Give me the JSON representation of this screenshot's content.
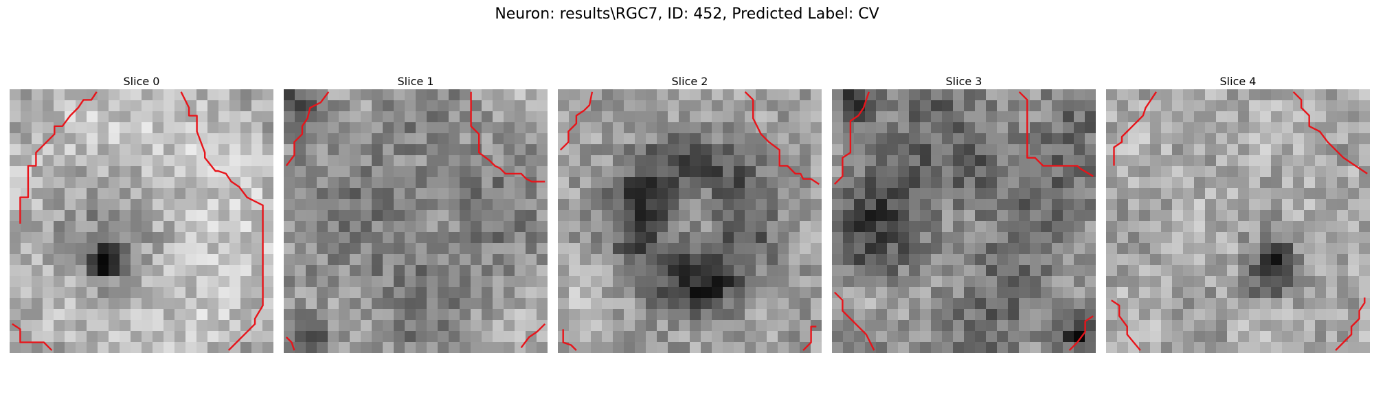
{
  "figure": {
    "title": "Neuron: results\\RGC7, ID: 452, Predicted Label: CV",
    "colors": {
      "contour": "#e8141a",
      "background": "#ffffff"
    },
    "slices": [
      {
        "label": "Slice 0",
        "style": "bright-ring-dark-spot",
        "contours": [
          [
            [
              0.04,
              0.51
            ],
            [
              0.04,
              0.41
            ],
            [
              0.07,
              0.41
            ],
            [
              0.07,
              0.29
            ],
            [
              0.1,
              0.29
            ],
            [
              0.1,
              0.24
            ],
            [
              0.14,
              0.2
            ],
            [
              0.17,
              0.17
            ],
            [
              0.17,
              0.14
            ],
            [
              0.2,
              0.14
            ],
            [
              0.23,
              0.1
            ],
            [
              0.26,
              0.07
            ],
            [
              0.28,
              0.04
            ],
            [
              0.31,
              0.04
            ],
            [
              0.33,
              0.01
            ]
          ],
          [
            [
              0.65,
              0.01
            ],
            [
              0.68,
              0.07
            ],
            [
              0.68,
              0.1
            ],
            [
              0.71,
              0.1
            ],
            [
              0.71,
              0.16
            ],
            [
              0.74,
              0.24
            ],
            [
              0.74,
              0.26
            ],
            [
              0.78,
              0.31
            ],
            [
              0.79,
              0.31
            ],
            [
              0.82,
              0.32
            ],
            [
              0.84,
              0.35
            ],
            [
              0.87,
              0.37
            ],
            [
              0.9,
              0.41
            ],
            [
              0.96,
              0.44
            ],
            [
              0.96,
              0.49
            ],
            [
              0.96,
              0.82
            ],
            [
              0.93,
              0.87
            ],
            [
              0.93,
              0.89
            ],
            [
              0.9,
              0.92
            ],
            [
              0.85,
              0.97
            ],
            [
              0.83,
              0.99
            ]
          ],
          [
            [
              0.01,
              0.89
            ],
            [
              0.04,
              0.91
            ],
            [
              0.04,
              0.96
            ],
            [
              0.13,
              0.96
            ],
            [
              0.16,
              0.99
            ]
          ]
        ]
      },
      {
        "label": "Slice 1",
        "style": "mottled",
        "contours": [
          [
            [
              0.01,
              0.29
            ],
            [
              0.04,
              0.25
            ],
            [
              0.04,
              0.2
            ],
            [
              0.07,
              0.17
            ],
            [
              0.07,
              0.14
            ],
            [
              0.09,
              0.11
            ],
            [
              0.1,
              0.07
            ],
            [
              0.14,
              0.05
            ],
            [
              0.17,
              0.01
            ]
          ],
          [
            [
              0.71,
              0.01
            ],
            [
              0.71,
              0.14
            ],
            [
              0.74,
              0.17
            ],
            [
              0.74,
              0.24
            ],
            [
              0.78,
              0.27
            ],
            [
              0.8,
              0.29
            ],
            [
              0.82,
              0.3
            ],
            [
              0.84,
              0.32
            ],
            [
              0.9,
              0.32
            ],
            [
              0.92,
              0.34
            ],
            [
              0.94,
              0.35
            ],
            [
              0.99,
              0.35
            ]
          ],
          [
            [
              0.01,
              0.94
            ],
            [
              0.03,
              0.96
            ],
            [
              0.04,
              0.99
            ]
          ],
          [
            [
              0.9,
              0.98
            ],
            [
              0.93,
              0.94
            ],
            [
              0.96,
              0.92
            ],
            [
              0.99,
              0.89
            ]
          ]
        ]
      },
      {
        "label": "Slice 2",
        "style": "dark-ring",
        "contours": [
          [
            [
              0.01,
              0.23
            ],
            [
              0.04,
              0.2
            ],
            [
              0.04,
              0.16
            ],
            [
              0.07,
              0.13
            ],
            [
              0.07,
              0.1
            ],
            [
              0.1,
              0.08
            ],
            [
              0.12,
              0.06
            ],
            [
              0.13,
              0.01
            ]
          ],
          [
            [
              0.71,
              0.01
            ],
            [
              0.74,
              0.04
            ],
            [
              0.74,
              0.11
            ],
            [
              0.77,
              0.17
            ],
            [
              0.8,
              0.2
            ],
            [
              0.84,
              0.23
            ],
            [
              0.84,
              0.29
            ],
            [
              0.87,
              0.29
            ],
            [
              0.9,
              0.32
            ],
            [
              0.92,
              0.32
            ],
            [
              0.93,
              0.34
            ],
            [
              0.96,
              0.34
            ],
            [
              0.99,
              0.36
            ]
          ],
          [
            [
              0.02,
              0.91
            ],
            [
              0.02,
              0.96
            ],
            [
              0.05,
              0.97
            ],
            [
              0.07,
              0.99
            ]
          ],
          [
            [
              0.93,
              0.99
            ],
            [
              0.96,
              0.96
            ],
            [
              0.96,
              0.9
            ],
            [
              0.98,
              0.9
            ]
          ]
        ]
      },
      {
        "label": "Slice 3",
        "style": "dark-mottled",
        "contours": [
          [
            [
              0.01,
              0.36
            ],
            [
              0.04,
              0.33
            ],
            [
              0.04,
              0.26
            ],
            [
              0.07,
              0.24
            ],
            [
              0.07,
              0.12
            ],
            [
              0.1,
              0.1
            ],
            [
              0.12,
              0.07
            ],
            [
              0.13,
              0.04
            ],
            [
              0.14,
              0.01
            ]
          ],
          [
            [
              0.71,
              0.01
            ],
            [
              0.74,
              0.04
            ],
            [
              0.74,
              0.26
            ],
            [
              0.77,
              0.26
            ],
            [
              0.8,
              0.29
            ],
            [
              0.84,
              0.29
            ],
            [
              0.84,
              0.29
            ],
            [
              0.87,
              0.29
            ],
            [
              0.9,
              0.29
            ],
            [
              0.93,
              0.29
            ],
            [
              0.94,
              0.3
            ],
            [
              0.99,
              0.33
            ]
          ],
          [
            [
              0.01,
              0.77
            ],
            [
              0.04,
              0.8
            ],
            [
              0.04,
              0.84
            ],
            [
              0.07,
              0.87
            ],
            [
              0.1,
              0.9
            ],
            [
              0.13,
              0.93
            ],
            [
              0.16,
              0.99
            ]
          ],
          [
            [
              0.9,
              0.99
            ],
            [
              0.93,
              0.96
            ],
            [
              0.96,
              0.92
            ],
            [
              0.96,
              0.88
            ],
            [
              0.99,
              0.86
            ]
          ]
        ]
      },
      {
        "label": "Slice 4",
        "style": "speckled-dark-blob",
        "contours": [
          [
            [
              0.03,
              0.29
            ],
            [
              0.03,
              0.22
            ],
            [
              0.06,
              0.2
            ],
            [
              0.06,
              0.18
            ],
            [
              0.09,
              0.15
            ],
            [
              0.12,
              0.12
            ],
            [
              0.14,
              0.1
            ],
            [
              0.15,
              0.07
            ],
            [
              0.17,
              0.04
            ],
            [
              0.19,
              0.01
            ]
          ],
          [
            [
              0.71,
              0.01
            ],
            [
              0.74,
              0.04
            ],
            [
              0.74,
              0.07
            ],
            [
              0.77,
              0.1
            ],
            [
              0.77,
              0.14
            ],
            [
              0.81,
              0.16
            ],
            [
              0.84,
              0.2
            ],
            [
              0.87,
              0.23
            ],
            [
              0.9,
              0.26
            ],
            [
              0.93,
              0.28
            ],
            [
              0.99,
              0.32
            ]
          ],
          [
            [
              0.02,
              0.8
            ],
            [
              0.05,
              0.82
            ],
            [
              0.05,
              0.86
            ],
            [
              0.08,
              0.9
            ],
            [
              0.08,
              0.93
            ],
            [
              0.13,
              0.99
            ]
          ],
          [
            [
              0.87,
              0.99
            ],
            [
              0.9,
              0.96
            ],
            [
              0.93,
              0.93
            ],
            [
              0.93,
              0.9
            ],
            [
              0.96,
              0.87
            ],
            [
              0.96,
              0.84
            ],
            [
              0.98,
              0.81
            ],
            [
              0.98,
              0.79
            ]
          ]
        ]
      }
    ]
  }
}
